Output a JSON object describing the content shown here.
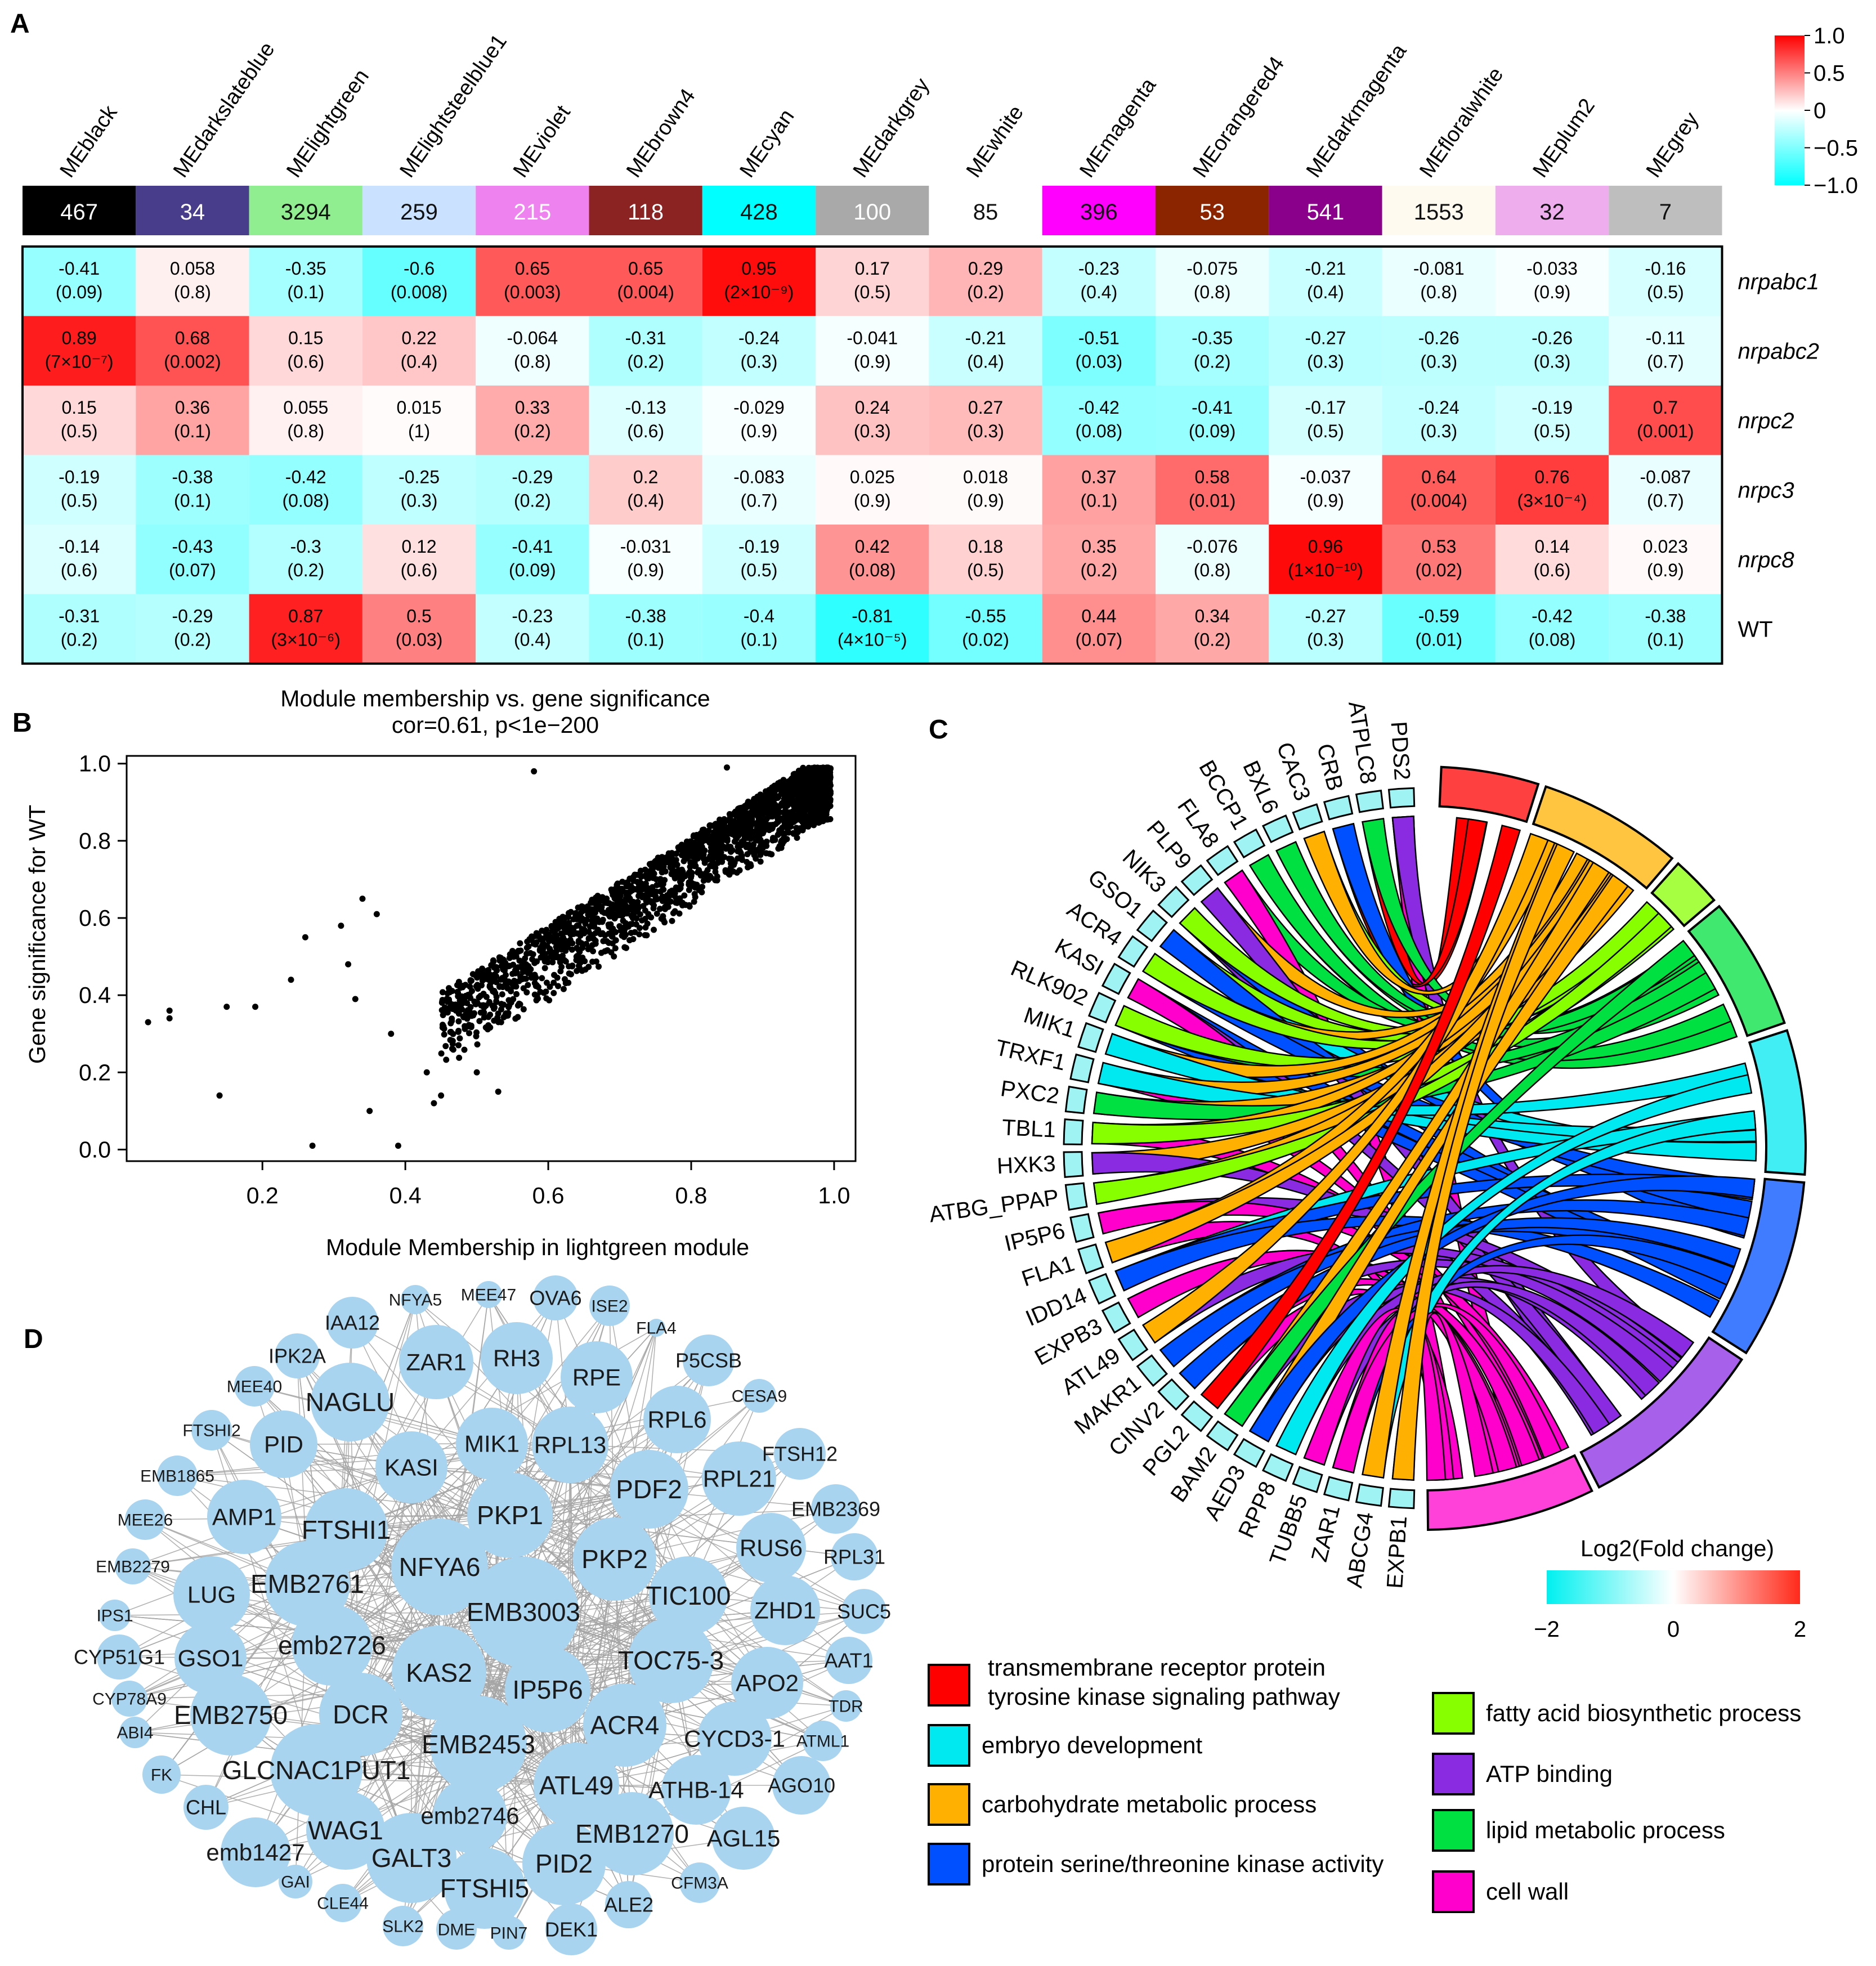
{
  "panels": {
    "a": "A",
    "b": "B",
    "c": "C",
    "d": "D"
  },
  "chart_data": [
    {
      "type": "heatmap",
      "panel": "A",
      "modules": [
        "MEblack",
        "MEdarkslateblue",
        "MElightgreen",
        "MElightsteelblue1",
        "MEviolet",
        "MEbrown4",
        "MEcyan",
        "MEdarkgrey",
        "MEwhite",
        "MEmagenta",
        "MEorangered4",
        "MEdarkmagenta",
        "MEfloralwhite",
        "MEplum2",
        "MEgrey"
      ],
      "module_colors": [
        "#000000",
        "#483d8b",
        "#90ee90",
        "#cae1ff",
        "#ee82ee",
        "#8b2323",
        "#00ffff",
        "#a9a9a9",
        "#ffffff",
        "#ff00ff",
        "#8b2500",
        "#8b008b",
        "#fffaf0",
        "#eeaeee",
        "#bebebe"
      ],
      "module_sizes": [
        "467",
        "34",
        "3294",
        "259",
        "215",
        "118",
        "428",
        "100",
        "85",
        "396",
        "53",
        "541",
        "1553",
        "32",
        "7"
      ],
      "traits": [
        "nrpabc1",
        "nrpabc2",
        "nrpc2",
        "nrpc3",
        "nrpc8",
        "WT"
      ],
      "correlations": [
        [
          "-0.41",
          "0.058",
          "-0.35",
          "-0.6",
          "0.65",
          "0.65",
          "0.95",
          "0.17",
          "0.29",
          "-0.23",
          "-0.075",
          "-0.21",
          "-0.081",
          "-0.033",
          "-0.16"
        ],
        [
          "0.89",
          "0.68",
          "0.15",
          "0.22",
          "-0.064",
          "-0.31",
          "-0.24",
          "-0.041",
          "-0.21",
          "-0.51",
          "-0.35",
          "-0.27",
          "-0.26",
          "-0.26",
          "-0.11"
        ],
        [
          "0.15",
          "0.36",
          "0.055",
          "0.015",
          "0.33",
          "-0.13",
          "-0.029",
          "0.24",
          "0.27",
          "-0.42",
          "-0.41",
          "-0.17",
          "-0.24",
          "-0.19",
          "0.7"
        ],
        [
          "-0.19",
          "-0.38",
          "-0.42",
          "-0.25",
          "-0.29",
          "0.2",
          "-0.083",
          "0.025",
          "0.018",
          "0.37",
          "0.58",
          "-0.037",
          "0.64",
          "0.76",
          "-0.087"
        ],
        [
          "-0.14",
          "-0.43",
          "-0.3",
          "0.12",
          "-0.41",
          "-0.031",
          "-0.19",
          "0.42",
          "0.18",
          "0.35",
          "-0.076",
          "0.96",
          "0.53",
          "0.14",
          "0.023"
        ],
        [
          "-0.31",
          "-0.29",
          "0.87",
          "0.5",
          "-0.23",
          "-0.38",
          "-0.4",
          "-0.81",
          "-0.55",
          "0.44",
          "0.34",
          "-0.27",
          "-0.59",
          "-0.42",
          "-0.38"
        ]
      ],
      "pvalues": [
        [
          "(0.09)",
          "(0.8)",
          "(0.1)",
          "(0.008)",
          "(0.003)",
          "(0.004)",
          "(2×10⁻⁹)",
          "(0.5)",
          "(0.2)",
          "(0.4)",
          "(0.8)",
          "(0.4)",
          "(0.8)",
          "(0.9)",
          "(0.5)"
        ],
        [
          "(7×10⁻⁷)",
          "(0.002)",
          "(0.6)",
          "(0.4)",
          "(0.8)",
          "(0.2)",
          "(0.3)",
          "(0.9)",
          "(0.4)",
          "(0.03)",
          "(0.2)",
          "(0.3)",
          "(0.3)",
          "(0.3)",
          "(0.7)"
        ],
        [
          "(0.5)",
          "(0.1)",
          "(0.8)",
          "(1)",
          "(0.2)",
          "(0.6)",
          "(0.9)",
          "(0.3)",
          "(0.3)",
          "(0.08)",
          "(0.09)",
          "(0.5)",
          "(0.3)",
          "(0.5)",
          "(0.001)"
        ],
        [
          "(0.5)",
          "(0.1)",
          "(0.08)",
          "(0.3)",
          "(0.2)",
          "(0.4)",
          "(0.7)",
          "(0.9)",
          "(0.9)",
          "(0.1)",
          "(0.01)",
          "(0.9)",
          "(0.004)",
          "(3×10⁻⁴)",
          "(0.7)"
        ],
        [
          "(0.6)",
          "(0.07)",
          "(0.2)",
          "(0.6)",
          "(0.09)",
          "(0.9)",
          "(0.5)",
          "(0.08)",
          "(0.5)",
          "(0.2)",
          "(0.8)",
          "(1×10⁻¹⁰)",
          "(0.02)",
          "(0.6)",
          "(0.9)"
        ],
        [
          "(0.2)",
          "(0.2)",
          "(3×10⁻⁶)",
          "(0.03)",
          "(0.4)",
          "(0.1)",
          "(0.1)",
          "(4×10⁻⁵)",
          "(0.02)",
          "(0.07)",
          "(0.2)",
          "(0.3)",
          "(0.01)",
          "(0.08)",
          "(0.1)"
        ]
      ],
      "colorbar": {
        "ticks": [
          "1.0",
          "0.5",
          "0",
          "−0.5",
          "−1.0"
        ],
        "range": [
          -1,
          1
        ],
        "low": "#00ffff",
        "mid": "#ffffff",
        "high": "#ff0000"
      }
    },
    {
      "type": "scatter",
      "panel": "B",
      "title": "Module membership vs. gene significance",
      "subtitle": "cor=0.61, p<1e−200",
      "xlabel": "Module Membership in lightgreen module",
      "ylabel": "Gene significance for WT",
      "xlim": [
        0.01,
        1.03
      ],
      "ylim": [
        -0.03,
        1.02
      ],
      "xticks": [
        "0.2",
        "0.4",
        "0.6",
        "0.8",
        "1.0"
      ],
      "yticks": [
        "0.0",
        "0.2",
        "0.4",
        "0.6",
        "0.8",
        "1.0"
      ],
      "n_points": 3294,
      "points_sample": [
        [
          0.04,
          0.33
        ],
        [
          0.07,
          0.36
        ],
        [
          0.07,
          0.34
        ],
        [
          0.14,
          0.14
        ],
        [
          0.15,
          0.37
        ],
        [
          0.19,
          0.37
        ],
        [
          0.24,
          0.44
        ],
        [
          0.27,
          0.01
        ],
        [
          0.39,
          0.01
        ],
        [
          0.35,
          0.1
        ],
        [
          0.32,
          0.48
        ],
        [
          0.33,
          0.39
        ],
        [
          0.26,
          0.55
        ],
        [
          0.31,
          0.58
        ],
        [
          0.34,
          0.65
        ],
        [
          0.36,
          0.61
        ],
        [
          0.38,
          0.3
        ],
        [
          0.44,
          0.12
        ],
        [
          0.45,
          0.14
        ],
        [
          0.43,
          0.2
        ],
        [
          0.5,
          0.2
        ],
        [
          0.53,
          0.15
        ],
        [
          0.58,
          0.98
        ],
        [
          0.85,
          0.99
        ]
      ],
      "point_model": {
        "x_center": 0.9,
        "description": "dense cluster toward high membership"
      }
    },
    {
      "type": "chord",
      "panel": "C",
      "genes": [
        "PDS2",
        "ATPLC8",
        "CRB",
        "CAC3",
        "BXL6",
        "BCCP1",
        "FLA8",
        "PLP9",
        "NIK3",
        "GSO1",
        "ACR4",
        "KASI",
        "RLK902",
        "MIK1",
        "TRXF1",
        "PXC2",
        "TBL1",
        "HXK3",
        "ATBG_PPAP",
        "IP5P6",
        "FLA1",
        "IDD14",
        "EXPB3",
        "ATL49",
        "MAKR1",
        "CINV2",
        "PGL2",
        "BAM2",
        "AED3",
        "RPP8",
        "TUBB5",
        "ZAR1",
        "ABCG4",
        "EXPB1"
      ],
      "terms": [
        "transmembrane receptor protein tyrosine kinase signaling pathway",
        "carbohydrate metabolic process",
        "fatty acid biosynthetic process",
        "lipid metabolic process",
        "embryo development",
        "protein serine/threonine kinase activity",
        "ATP binding",
        "cell wall"
      ],
      "term_colors": [
        "#ff0000",
        "#ffb000",
        "#88ff00",
        "#00e040",
        "#00e8f0",
        "#0050ff",
        "#8a2be2",
        "#ff00cc"
      ],
      "colorbar_title": "Log2(Fold change)",
      "colorbar_ticks": [
        "−2",
        "0",
        "2"
      ],
      "legend": [
        {
          "label_lines": [
            "transmembrane receptor protein",
            "tyrosine kinase signaling pathway"
          ],
          "color": "#ff0000"
        },
        {
          "label_lines": [
            "embryo development"
          ],
          "color": "#00e8f0"
        },
        {
          "label_lines": [
            "carbohydrate metabolic process"
          ],
          "color": "#ffb000"
        },
        {
          "label_lines": [
            "protein serine/threonine kinase activity"
          ],
          "color": "#0050ff"
        },
        {
          "label_lines": [
            "fatty acid biosynthetic process"
          ],
          "color": "#88ff00"
        },
        {
          "label_lines": [
            "ATP binding"
          ],
          "color": "#8a2be2"
        },
        {
          "label_lines": [
            "lipid metabolic process"
          ],
          "color": "#00e040"
        },
        {
          "label_lines": [
            "cell wall"
          ],
          "color": "#ff00cc"
        }
      ]
    },
    {
      "type": "network",
      "panel": "D",
      "node_color": "#a8d4f0",
      "nodes": [
        "NFYA5",
        "MEE47",
        "OVA6",
        "ISE2",
        "FLA4",
        "IAA12",
        "IPK2A",
        "ZAR1",
        "RH3",
        "RPE",
        "P5CSB",
        "MEE40",
        "NAGLU",
        "CESA9",
        "FTSHI2",
        "PID",
        "MIK1",
        "RPL13",
        "RPL6",
        "FTSH12",
        "KASI",
        "EMB1865",
        "PDF2",
        "RPL21",
        "AMP1",
        "PKP1",
        "EMB2369",
        "MEE26",
        "FTSHI1",
        "NFYA6",
        "PKP2",
        "RUS6",
        "RPL31",
        "EMB2279",
        "EMB2761",
        "LUG",
        "EMB3003",
        "TIC100",
        "ZHD1",
        "SUC5",
        "IPS1",
        "emb2726",
        "CYP51G1",
        "GSO1",
        "TOC75-3",
        "AAT1",
        "KAS2",
        "IP5P6",
        "APO2",
        "CYP78A9",
        "TDR",
        "EMB2750",
        "DCR",
        "ABI4",
        "ACR4",
        "CYCD3-1",
        "ATML1",
        "EMB2453",
        "FK",
        "GLCNAC1PUT1",
        "ATL49",
        "ATHB-14",
        "AGO10",
        "CHL",
        "emb2746",
        "WAG1",
        "EMB1270",
        "AGL15",
        "emb1427",
        "GALT3",
        "PID2",
        "GAI",
        "CFM3A",
        "FTSHI5",
        "CLE44",
        "ALE2",
        "SLK2",
        "DME",
        "PIN7",
        "DEK1"
      ]
    }
  ]
}
